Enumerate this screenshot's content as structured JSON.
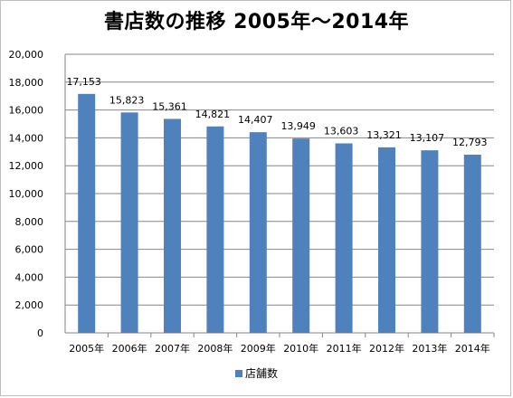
{
  "chart_data": {
    "type": "bar",
    "title": "書店数の推移 2005年～2014年",
    "categories": [
      "2005年",
      "2006年",
      "2007年",
      "2008年",
      "2009年",
      "2010年",
      "2011年",
      "2012年",
      "2013年",
      "2014年"
    ],
    "series": [
      {
        "name": "店舗数",
        "values": [
          17153,
          15823,
          15361,
          14821,
          14407,
          13949,
          13603,
          13321,
          13107,
          12793
        ]
      }
    ],
    "data_labels": [
      "17,153",
      "15,823",
      "15,361",
      "14,821",
      "14,407",
      "13,949",
      "13,603",
      "13,321",
      "13,107",
      "12,793"
    ],
    "y_ticks": [
      "0",
      "2,000",
      "4,000",
      "6,000",
      "8,000",
      "10,000",
      "12,000",
      "14,000",
      "16,000",
      "18,000",
      "20,000"
    ],
    "ylim": [
      0,
      20000
    ],
    "grid": true,
    "legend_position": "bottom",
    "bar_color": "#4f81bd"
  }
}
